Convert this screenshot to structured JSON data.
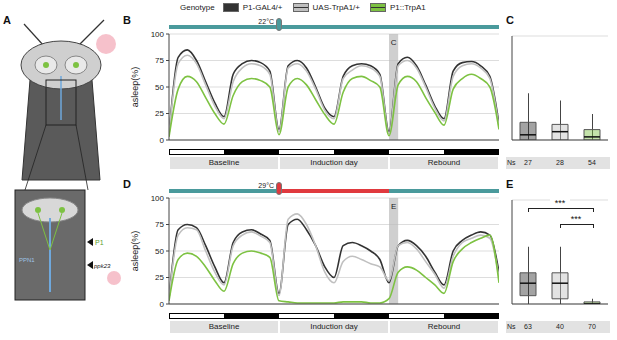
{
  "legend_title": "Genotype",
  "diagram": {
    "label": "A",
    "texts": {
      "p1": "P1",
      "ppn1": "PPN1",
      "ppk23": "ppk23"
    }
  },
  "chart_data": [
    {
      "panel": "B",
      "type": "line",
      "ylabel": "asleep(%)",
      "temperature_label": "22°C",
      "temperature_periods": [
        {
          "range": [
            0,
            72
          ],
          "color": "#4a9a9c"
        }
      ],
      "x": [
        0,
        2,
        4,
        6,
        8,
        10,
        12,
        14,
        16,
        18,
        20,
        22,
        24,
        26,
        28,
        30,
        32,
        34,
        36,
        38,
        40,
        42,
        44,
        46,
        48,
        50,
        52,
        54,
        56,
        58,
        60,
        62,
        64,
        66,
        68,
        70,
        72
      ],
      "xlim": [
        0,
        72
      ],
      "xticks": [
        0,
        12,
        24,
        36,
        48,
        60,
        72
      ],
      "ylim": [
        0,
        100
      ],
      "yticks": [
        0,
        25,
        50,
        75,
        100
      ],
      "tick_labels": "y",
      "grid": true,
      "legend": "top",
      "highlight": {
        "label": "C",
        "range": [
          48,
          50
        ]
      },
      "days": [
        {
          "label": "Baseline",
          "range": [
            0,
            24
          ]
        },
        {
          "label": "Induction day",
          "range": [
            24,
            48
          ]
        },
        {
          "label": "Rebound",
          "range": [
            48,
            72
          ]
        }
      ],
      "dark_periods": [
        [
          12,
          24
        ],
        [
          36,
          48
        ],
        [
          60,
          72
        ]
      ],
      "series": [
        {
          "name": "P1-GAL4/+",
          "color": "#333333",
          "values": [
            5,
            78,
            85,
            75,
            55,
            35,
            22,
            62,
            72,
            75,
            73,
            65,
            10,
            70,
            75,
            68,
            50,
            30,
            22,
            60,
            70,
            72,
            70,
            62,
            8,
            72,
            78,
            70,
            52,
            32,
            20,
            65,
            73,
            74,
            70,
            60,
            15
          ]
        },
        {
          "name": "UAS-TrpA1/+",
          "color": "#c0c0c0",
          "values": [
            5,
            72,
            80,
            72,
            52,
            32,
            20,
            55,
            68,
            72,
            70,
            62,
            8,
            68,
            72,
            65,
            48,
            28,
            20,
            58,
            66,
            70,
            68,
            60,
            6,
            70,
            75,
            68,
            50,
            30,
            18,
            60,
            70,
            72,
            68,
            58,
            12
          ]
        },
        {
          "name": "P1::TrpA1",
          "color": "#7dc242",
          "values": [
            3,
            48,
            60,
            55,
            40,
            25,
            15,
            42,
            55,
            58,
            56,
            50,
            5,
            50,
            58,
            52,
            38,
            24,
            15,
            45,
            58,
            60,
            56,
            50,
            4,
            52,
            60,
            55,
            40,
            26,
            14,
            48,
            58,
            62,
            58,
            50,
            10
          ]
        }
      ]
    },
    {
      "panel": "C",
      "type": "box",
      "ylim": [
        0,
        100
      ],
      "yticks": [
        0,
        25,
        50,
        75,
        100
      ],
      "tick_labels": false,
      "grid": true,
      "n_label": "Ns",
      "series": [
        {
          "name": "P1-GAL4/+",
          "color": "#333333",
          "min": 0,
          "q1": 0,
          "median": 5,
          "q3": 17,
          "max": 45,
          "n": 27
        },
        {
          "name": "UAS-TrpA1/+",
          "color": "#c0c0c0",
          "min": 0,
          "q1": 0,
          "median": 8,
          "q3": 15,
          "max": 38,
          "n": 28
        },
        {
          "name": "P1::TrpA1",
          "color": "#7dc242",
          "min": 0,
          "q1": 0,
          "median": 3,
          "q3": 10,
          "max": 25,
          "n": 54
        }
      ]
    },
    {
      "panel": "D",
      "type": "line",
      "ylabel": "asleep(%)",
      "temperature_label": "29°C",
      "temperature_periods": [
        {
          "range": [
            0,
            24
          ],
          "color": "#4a9a9c"
        },
        {
          "range": [
            24,
            48
          ],
          "color": "#e0393e"
        },
        {
          "range": [
            48,
            72
          ],
          "color": "#4a9a9c"
        }
      ],
      "x": [
        0,
        2,
        4,
        6,
        8,
        10,
        12,
        14,
        16,
        18,
        20,
        22,
        24,
        26,
        28,
        30,
        32,
        34,
        36,
        38,
        40,
        42,
        44,
        46,
        48,
        50,
        52,
        54,
        56,
        58,
        60,
        62,
        64,
        66,
        68,
        70,
        72
      ],
      "xlim": [
        0,
        72
      ],
      "xticks": [
        0,
        12,
        24,
        36,
        48,
        60,
        72
      ],
      "ylim": [
        0,
        100
      ],
      "yticks": [
        0,
        25,
        50,
        75,
        100
      ],
      "tick_labels": "y",
      "grid": true,
      "legend": "top",
      "highlight": {
        "label": "E",
        "range": [
          48,
          50
        ]
      },
      "days": [
        {
          "label": "Baseline",
          "range": [
            0,
            24
          ]
        },
        {
          "label": "Induction day",
          "range": [
            24,
            48
          ]
        },
        {
          "label": "Rebound",
          "range": [
            48,
            72
          ]
        }
      ],
      "dark_periods": [
        [
          12,
          24
        ],
        [
          36,
          48
        ],
        [
          60,
          72
        ]
      ],
      "series": [
        {
          "name": "P1-GAL4/+",
          "color": "#333333",
          "values": [
            5,
            70,
            75,
            72,
            55,
            35,
            20,
            58,
            68,
            70,
            66,
            60,
            10,
            75,
            80,
            70,
            55,
            35,
            25,
            55,
            58,
            55,
            50,
            42,
            20,
            55,
            60,
            55,
            45,
            30,
            18,
            50,
            60,
            65,
            68,
            65,
            30
          ]
        },
        {
          "name": "UAS-TrpA1/+",
          "color": "#c0c0c0",
          "values": [
            5,
            65,
            72,
            70,
            50,
            30,
            18,
            55,
            65,
            68,
            64,
            58,
            8,
            80,
            85,
            75,
            55,
            30,
            20,
            40,
            45,
            42,
            38,
            35,
            22,
            55,
            58,
            52,
            40,
            28,
            15,
            45,
            58,
            62,
            65,
            62,
            25
          ]
        },
        {
          "name": "P1::TrpA1",
          "color": "#7dc242",
          "values": [
            3,
            42,
            48,
            45,
            35,
            22,
            12,
            38,
            48,
            50,
            48,
            44,
            3,
            2,
            1,
            1,
            1,
            1,
            1,
            2,
            2,
            2,
            1,
            1,
            5,
            30,
            35,
            32,
            25,
            18,
            10,
            40,
            52,
            58,
            62,
            65,
            20
          ]
        }
      ]
    },
    {
      "panel": "E",
      "type": "box",
      "ylim": [
        0,
        100
      ],
      "yticks": [
        0,
        25,
        50,
        75,
        100
      ],
      "tick_labels": false,
      "grid": true,
      "n_label": "Ns",
      "comparisons": [
        {
          "pair": [
            0,
            2
          ],
          "label": "***"
        },
        {
          "pair": [
            1,
            2
          ],
          "label": "***"
        }
      ],
      "series": [
        {
          "name": "P1-GAL4/+",
          "color": "#333333",
          "min": 0,
          "q1": 8,
          "median": 20,
          "q3": 30,
          "max": 55,
          "n": 63
        },
        {
          "name": "UAS-TrpA1/+",
          "color": "#c0c0c0",
          "min": 0,
          "q1": 5,
          "median": 20,
          "q3": 30,
          "max": 55,
          "n": 40
        },
        {
          "name": "P1::TrpA1",
          "color": "#7dc242",
          "min": 0,
          "q1": 0,
          "median": 0,
          "q3": 2,
          "max": 5,
          "n": 70
        }
      ]
    }
  ]
}
